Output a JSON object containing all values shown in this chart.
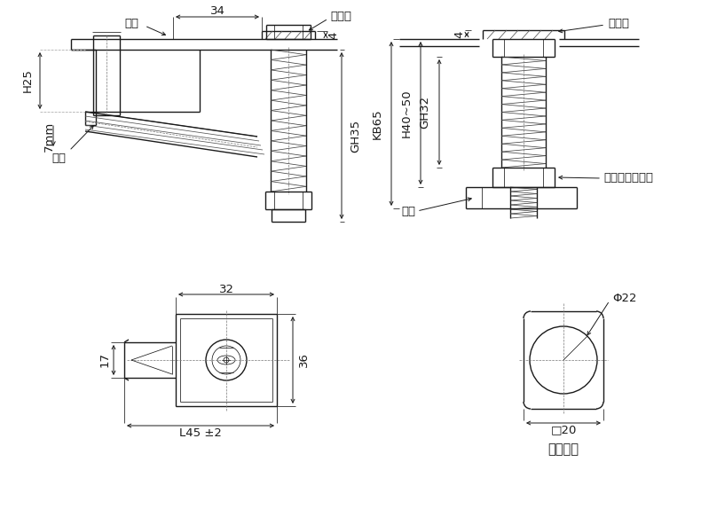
{
  "bg": "#ffffff",
  "lc": "#1a1a1a",
  "fs": 9.5,
  "labels": {
    "men_ban": "门板",
    "mifeng": "密封垫",
    "suopian": "锁片",
    "tiaojie": "调节式螺纹转轴",
    "kaikong": "开孔尺寸",
    "H25": "H25",
    "7mm": "7mm",
    "GH35": "GH35",
    "d34": "34",
    "d4": "4",
    "KB65": "KB65",
    "H4050": "H40~50",
    "GH32": "GH32",
    "d32": "32",
    "d17": "17",
    "d36": "36",
    "L45": "L45 ±2",
    "Phi22": "Φ22",
    "sq20": "□20"
  }
}
